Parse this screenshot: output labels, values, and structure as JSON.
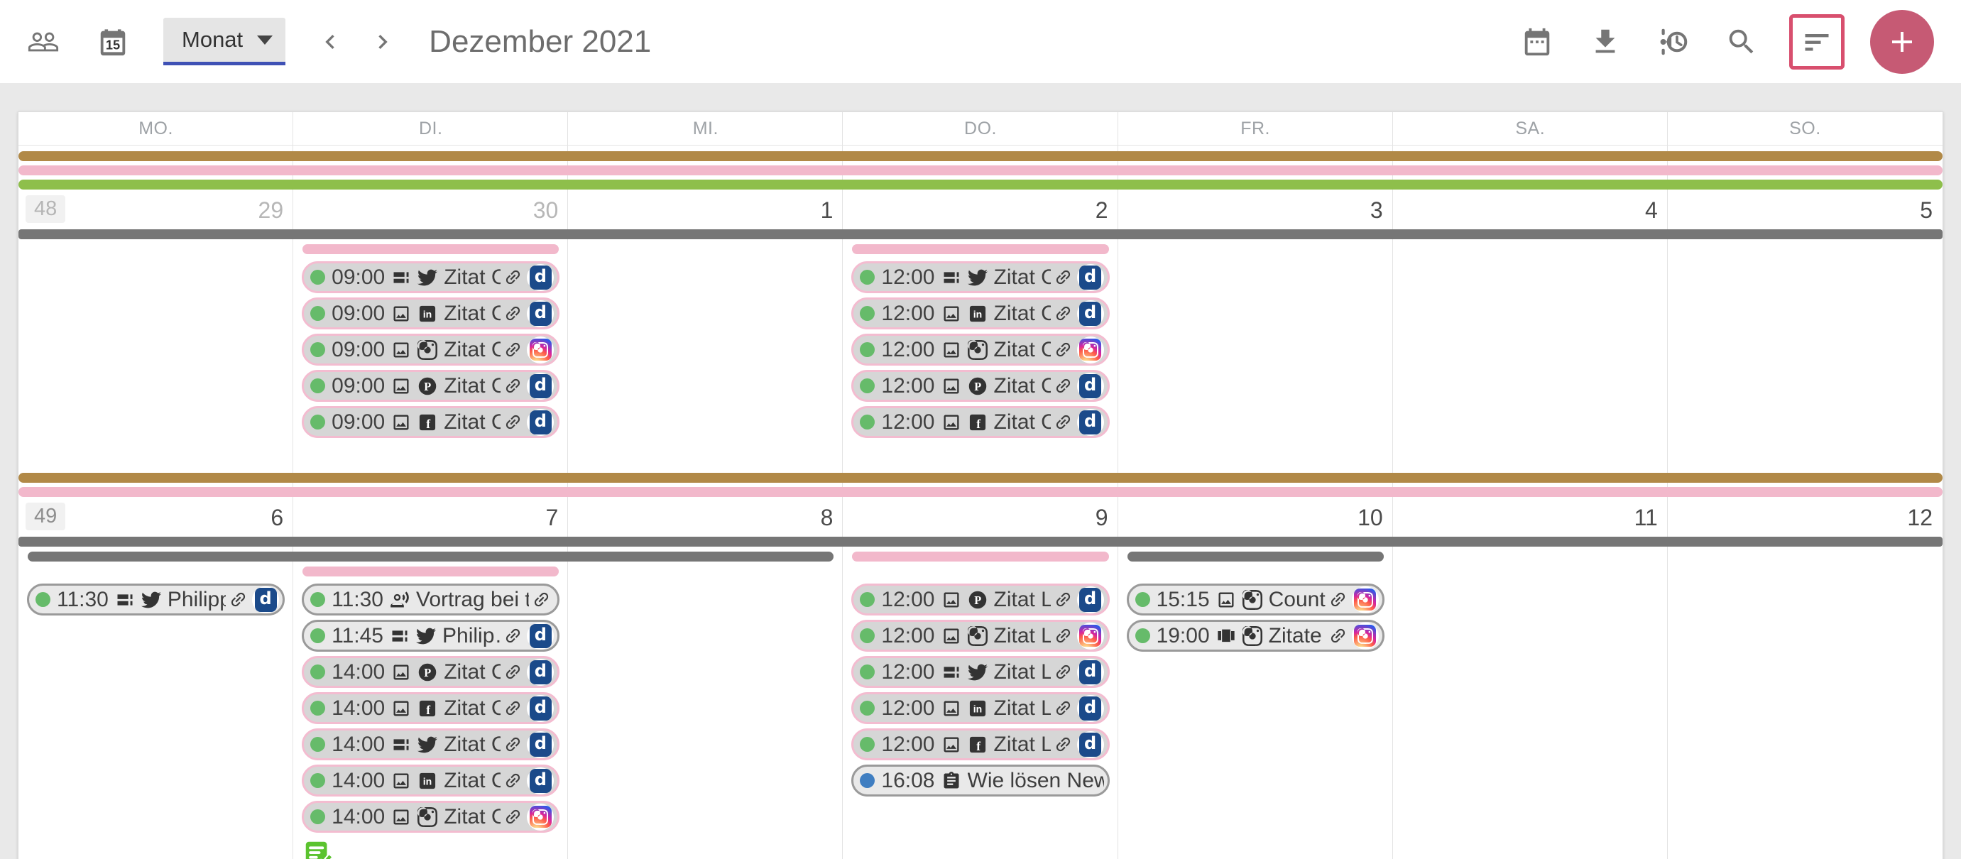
{
  "toolbar": {
    "view_select_label": "Monat",
    "title": "Dezember 2021",
    "left_icons": [
      "people-icon",
      "calendar-day-icon"
    ],
    "calendar_day_number": "15",
    "right_icons": [
      "calendar-icon",
      "download-icon",
      "schedule-history-icon",
      "search-icon"
    ],
    "filter_button": "filter-icon",
    "add_button": "plus-icon"
  },
  "colors": {
    "accent_pink": "#d84f6e",
    "fab": "#c65a74",
    "bar_brown": "#b18947",
    "bar_pink": "#f2b8cb",
    "bar_green": "#8ebf4b",
    "bar_gray": "#767676",
    "dot_green": "#66bb6a",
    "dot_blue": "#3f7ec1",
    "badge_navy": "#1b4a8a"
  },
  "calendar": {
    "day_headers": [
      "MO.",
      "DI.",
      "MI.",
      "DO.",
      "FR.",
      "SA.",
      "SO."
    ],
    "weeks": [
      {
        "week_number": "48",
        "week_number_color": "#b5b5b5",
        "top_bars": [
          "bar_brown",
          "bar_pink",
          "bar_green"
        ],
        "days": [
          {
            "num": "29",
            "muted": true
          },
          {
            "num": "30",
            "muted": true
          },
          {
            "num": "1"
          },
          {
            "num": "2"
          },
          {
            "num": "3"
          },
          {
            "num": "4"
          },
          {
            "num": "5"
          }
        ],
        "range_rows": [
          [
            {
              "start": 1,
              "span": 7,
              "color": "bar_gray",
              "full": true
            }
          ],
          [
            {
              "start": 2,
              "span": 1,
              "color": "bar_pink"
            },
            {
              "start": 4,
              "span": 1,
              "color": "bar_pink"
            }
          ]
        ],
        "min_height": 290,
        "cells": [
          {
            "events": []
          },
          {
            "events": [
              {
                "time": "09:00",
                "dot": "green",
                "icons": [
                  "collage",
                  "twitter"
                ],
                "title": "Zitat C…",
                "link": true,
                "badge": "d",
                "variant": "pink"
              },
              {
                "time": "09:00",
                "dot": "green",
                "icons": [
                  "image",
                  "linkedin"
                ],
                "title": "Zitat C…",
                "link": true,
                "badge": "d",
                "variant": "pink"
              },
              {
                "time": "09:00",
                "dot": "green",
                "icons": [
                  "image",
                  "instagram"
                ],
                "title": "Zitat C…",
                "link": true,
                "badge": "instagram",
                "variant": "pink"
              },
              {
                "time": "09:00",
                "dot": "green",
                "icons": [
                  "image",
                  "pinterest"
                ],
                "title": "Zitat C…",
                "link": true,
                "badge": "d",
                "variant": "pink"
              },
              {
                "time": "09:00",
                "dot": "green",
                "icons": [
                  "image",
                  "facebook"
                ],
                "title": "Zitat C…",
                "link": true,
                "badge": "d",
                "variant": "pink"
              }
            ]
          },
          {
            "events": []
          },
          {
            "events": [
              {
                "time": "12:00",
                "dot": "green",
                "icons": [
                  "collage",
                  "twitter"
                ],
                "title": "Zitat C…",
                "link": true,
                "badge": "d",
                "variant": "pink"
              },
              {
                "time": "12:00",
                "dot": "green",
                "icons": [
                  "image",
                  "linkedin"
                ],
                "title": "Zitat C…",
                "link": true,
                "badge": "d",
                "variant": "pink"
              },
              {
                "time": "12:00",
                "dot": "green",
                "icons": [
                  "image",
                  "instagram"
                ],
                "title": "Zitat C…",
                "link": true,
                "badge": "instagram",
                "variant": "pink"
              },
              {
                "time": "12:00",
                "dot": "green",
                "icons": [
                  "image",
                  "pinterest"
                ],
                "title": "Zitat C…",
                "link": true,
                "badge": "d",
                "variant": "pink"
              },
              {
                "time": "12:00",
                "dot": "green",
                "icons": [
                  "image",
                  "facebook"
                ],
                "title": "Zitat C…",
                "link": true,
                "badge": "d",
                "variant": "pink"
              }
            ]
          },
          {
            "events": []
          },
          {
            "events": []
          },
          {
            "events": []
          }
        ]
      },
      {
        "week_number": "49",
        "week_number_color": "#8e8e8e",
        "top_bars": [
          "bar_brown",
          "bar_pink"
        ],
        "days": [
          {
            "num": "6"
          },
          {
            "num": "7"
          },
          {
            "num": "8"
          },
          {
            "num": "9"
          },
          {
            "num": "10"
          },
          {
            "num": "11"
          },
          {
            "num": "12"
          }
        ],
        "range_rows": [
          [
            {
              "start": 1,
              "span": 7,
              "color": "bar_gray",
              "full": true
            }
          ],
          [
            {
              "start": 1,
              "span": 3,
              "color": "bar_gray"
            },
            {
              "start": 4,
              "span": 1,
              "color": "bar_pink"
            },
            {
              "start": 5,
              "span": 1,
              "color": "bar_gray"
            }
          ],
          [
            {
              "start": 2,
              "span": 1,
              "color": "bar_pink"
            }
          ]
        ],
        "min_height": 0,
        "cells": [
          {
            "events": [
              {
                "time": "11:30",
                "dot": "green",
                "icons": [
                  "collage",
                  "twitter"
                ],
                "title": "Philipp…",
                "link": true,
                "badge": "d",
                "variant": "gray"
              }
            ]
          },
          {
            "events": [
              {
                "time": "11:30",
                "dot": "green",
                "icons": [
                  "voice"
                ],
                "title": "Vortrag bei t…",
                "link": true,
                "badge": null,
                "variant": "gray"
              },
              {
                "time": "11:45",
                "dot": "green",
                "icons": [
                  "collage",
                  "twitter"
                ],
                "title": "Philip…",
                "link": true,
                "badge": "d",
                "variant": "gray"
              },
              {
                "time": "14:00",
                "dot": "green",
                "icons": [
                  "image",
                  "pinterest"
                ],
                "title": "Zitat C…",
                "link": true,
                "badge": "d",
                "variant": "pink"
              },
              {
                "time": "14:00",
                "dot": "green",
                "icons": [
                  "image",
                  "facebook"
                ],
                "title": "Zitat C…",
                "link": true,
                "badge": "d",
                "variant": "pink"
              },
              {
                "time": "14:00",
                "dot": "green",
                "icons": [
                  "collage",
                  "twitter"
                ],
                "title": "Zitat C…",
                "link": true,
                "badge": "d",
                "variant": "pink"
              },
              {
                "time": "14:00",
                "dot": "green",
                "icons": [
                  "image",
                  "linkedin"
                ],
                "title": "Zitat C…",
                "link": true,
                "badge": "d",
                "variant": "pink"
              },
              {
                "time": "14:00",
                "dot": "green",
                "icons": [
                  "image",
                  "instagram"
                ],
                "title": "Zitat C…",
                "link": true,
                "badge": "instagram",
                "variant": "pink"
              }
            ],
            "footer_icon": "notes-check"
          },
          {
            "events": []
          },
          {
            "events": [
              {
                "time": "12:00",
                "dot": "green",
                "icons": [
                  "image",
                  "pinterest"
                ],
                "title": "Zitat L…",
                "link": true,
                "badge": "d",
                "variant": "pink"
              },
              {
                "time": "12:00",
                "dot": "green",
                "icons": [
                  "image",
                  "instagram"
                ],
                "title": "Zitat L…",
                "link": true,
                "badge": "instagram",
                "variant": "pink"
              },
              {
                "time": "12:00",
                "dot": "green",
                "icons": [
                  "collage",
                  "twitter"
                ],
                "title": "Zitat L…",
                "link": true,
                "badge": "d",
                "variant": "pink"
              },
              {
                "time": "12:00",
                "dot": "green",
                "icons": [
                  "image",
                  "linkedin"
                ],
                "title": "Zitat L…",
                "link": true,
                "badge": "d",
                "variant": "pink"
              },
              {
                "time": "12:00",
                "dot": "green",
                "icons": [
                  "image",
                  "facebook"
                ],
                "title": "Zitat L…",
                "link": true,
                "badge": "d",
                "variant": "pink"
              },
              {
                "time": "16:08",
                "dot": "blue",
                "icons": [
                  "clipboard"
                ],
                "title": "Wie lösen New…",
                "link": false,
                "badge": null,
                "variant": "gray"
              }
            ]
          },
          {
            "events": [
              {
                "time": "15:15",
                "dot": "green",
                "icons": [
                  "image",
                  "instagram"
                ],
                "title": "Count…",
                "link": true,
                "badge": "instagram",
                "variant": "gray"
              },
              {
                "time": "19:00",
                "dot": "green",
                "icons": [
                  "carousel",
                  "instagram"
                ],
                "title": "Zitate …",
                "link": true,
                "badge": "instagram",
                "variant": "gray"
              }
            ]
          },
          {
            "events": []
          },
          {
            "events": []
          }
        ]
      }
    ]
  }
}
